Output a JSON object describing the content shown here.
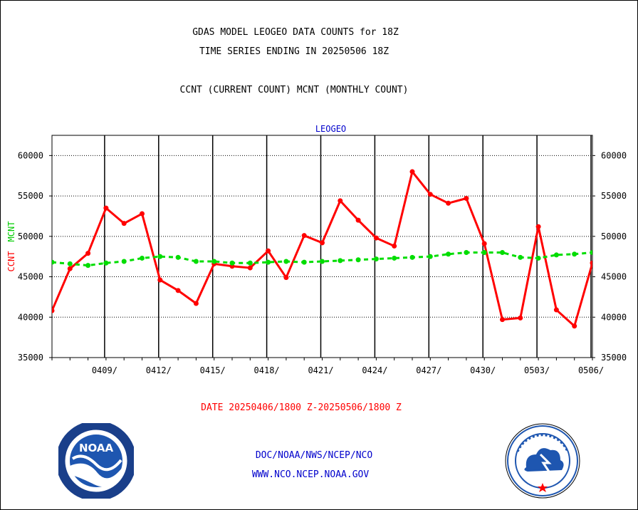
{
  "header": {
    "line1": "GDAS MODEL LEOGEO DATA COUNTS for 18Z",
    "line2": "TIME SERIES ENDING IN 20250506 18Z",
    "line3": "CCNT (CURRENT COUNT) MCNT (MONTHLY COUNT)"
  },
  "footer": {
    "date_range": "DATE 20250406/1800 Z-20250506/1800 Z",
    "org_line": "DOC/NOAA/NWS/NCEP/NCO",
    "url_line": "WWW.NCO.NCEP.NOAA.GOV"
  },
  "logos": {
    "noaa": {
      "name": "noaa-logo",
      "label": "NOAA"
    },
    "nws": {
      "name": "nws-logo"
    }
  },
  "chart_data": {
    "type": "line",
    "title": "LEOGEO",
    "ylabel_left_1": "CCNT",
    "ylabel_left_2": "MCNT",
    "xlim": [
      0,
      30
    ],
    "ylim": [
      35000,
      62500
    ],
    "yticks": [
      35000,
      40000,
      45000,
      50000,
      55000,
      60000
    ],
    "xticks": [
      {
        "x": 3,
        "label": "0409/"
      },
      {
        "x": 6,
        "label": "0412/"
      },
      {
        "x": 9,
        "label": "0415/"
      },
      {
        "x": 12,
        "label": "0418/"
      },
      {
        "x": 15,
        "label": "0421/"
      },
      {
        "x": 18,
        "label": "0424/"
      },
      {
        "x": 21,
        "label": "0427/"
      },
      {
        "x": 24,
        "label": "0430/"
      },
      {
        "x": 27,
        "label": "0503/"
      },
      {
        "x": 30,
        "label": "0506/"
      }
    ],
    "grid": true,
    "series": [
      {
        "name": "CCNT",
        "color": "#ff0000",
        "style": "solid",
        "x": [
          0,
          1,
          2,
          3,
          4,
          5,
          6,
          7,
          8,
          9,
          10,
          11,
          12,
          13,
          14,
          15,
          16,
          17,
          18,
          19,
          20,
          21,
          22,
          23,
          24,
          25,
          26,
          27,
          28,
          29,
          30
        ],
        "values": [
          40800,
          46000,
          47900,
          53500,
          51600,
          52800,
          44600,
          43300,
          41700,
          46600,
          46300,
          46100,
          48200,
          44900,
          50100,
          49200,
          54400,
          52000,
          49800,
          48800,
          58000,
          55200,
          54100,
          54700,
          49100,
          39700,
          39900,
          51200,
          40900,
          38900,
          46700
        ]
      },
      {
        "name": "MCNT",
        "color": "#00dd00",
        "style": "dashed",
        "x": [
          0,
          1,
          2,
          3,
          4,
          5,
          6,
          7,
          8,
          9,
          10,
          11,
          12,
          13,
          14,
          15,
          16,
          17,
          18,
          19,
          20,
          21,
          22,
          23,
          24,
          25,
          26,
          27,
          28,
          29,
          30
        ],
        "values": [
          46800,
          46600,
          46400,
          46700,
          46900,
          47300,
          47500,
          47400,
          46900,
          46900,
          46700,
          46700,
          46800,
          46900,
          46800,
          46900,
          47000,
          47100,
          47200,
          47300,
          47400,
          47500,
          47800,
          48000,
          48000,
          48000,
          47400,
          47300,
          47700,
          47800,
          48000
        ]
      }
    ]
  }
}
